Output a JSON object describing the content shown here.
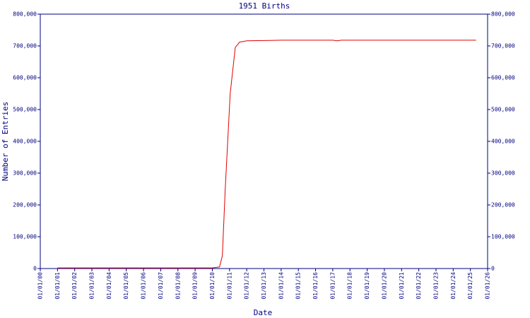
{
  "chart_data": {
    "type": "line",
    "title": "1951 Births",
    "x_label": "Date",
    "y_label": "Number of Entries",
    "x": [
      "01/01/01",
      "01/01/04",
      "01/01/07",
      "01/01/10",
      "06/01/10",
      "08/01/10",
      "10/01/10",
      "01/15/11",
      "05/01/11",
      "08/01/11",
      "01/01/12",
      "01/01/14",
      "01/01/17",
      "04/01/17",
      "07/01/17",
      "01/01/20",
      "01/01/25",
      "05/01/25"
    ],
    "series": [
      {
        "name": "1951 Births",
        "color": "#e00000",
        "values": [
          2000,
          2000,
          2000,
          2000,
          5000,
          40000,
          250000,
          550000,
          695000,
          712000,
          716000,
          718000,
          718000,
          716000,
          718000,
          718000,
          718000,
          718000
        ]
      }
    ],
    "xlim": [
      "01/01/00",
      "01/01/26"
    ],
    "xticks": [
      "01/01/00",
      "01/01/01",
      "01/01/02",
      "01/01/03",
      "01/01/04",
      "01/01/05",
      "01/01/06",
      "01/01/07",
      "01/01/08",
      "01/01/09",
      "01/01/10",
      "01/01/11",
      "01/01/12",
      "01/01/13",
      "01/01/14",
      "01/01/15",
      "01/01/16",
      "01/01/17",
      "01/01/18",
      "01/01/19",
      "01/01/20",
      "01/01/21",
      "01/01/22",
      "01/01/23",
      "01/01/24",
      "01/01/25",
      "01/01/26"
    ],
    "ylim": [
      0,
      800000
    ],
    "yticks": [
      0,
      {
        "value": 100000,
        "label": "100,000"
      },
      {
        "value": 200000,
        "label": "200,000"
      },
      {
        "value": 300000,
        "label": "300,000"
      },
      {
        "value": 400000,
        "label": "400,000"
      },
      {
        "value": 500000,
        "label": "500,000"
      },
      {
        "value": 600000,
        "label": "600,000"
      },
      {
        "value": 700000,
        "label": "700,000"
      },
      {
        "value": 800000,
        "label": "800,000"
      }
    ],
    "axis_color": "#000080"
  }
}
